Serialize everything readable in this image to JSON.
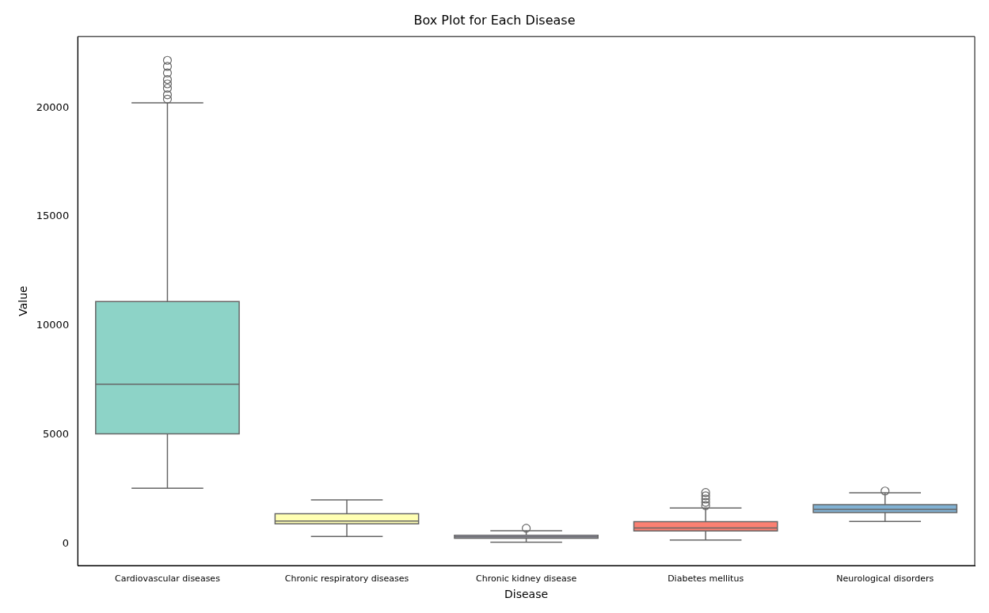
{
  "chart_data": {
    "type": "box",
    "title": "Box Plot for Each Disease",
    "xlabel": "Disease",
    "ylabel": "Value",
    "categories": [
      "Cardiovascular diseases",
      "Chronic respiratory diseases",
      "Chronic kidney disease",
      "Diabetes mellitus",
      "Neurological disorders"
    ],
    "colors": [
      "#8dd3c7",
      "#ffffb3",
      "#bebada",
      "#fb8072",
      "#80b1d3"
    ],
    "boxes": [
      {
        "low": 2550,
        "q1": 5040,
        "median": 7320,
        "q3": 11110,
        "high": 20230,
        "outliers": [
          20400,
          20600,
          20900,
          21100,
          21300,
          21600,
          21900,
          22180
        ]
      },
      {
        "low": 330,
        "q1": 910,
        "median": 1040,
        "q3": 1380,
        "high": 2010
      },
      {
        "low": 70,
        "q1": 250,
        "median": 320,
        "q3": 385,
        "high": 600,
        "outliers": [
          710
        ]
      },
      {
        "low": 170,
        "q1": 590,
        "median": 720,
        "q3": 1010,
        "high": 1640,
        "outliers": [
          1750,
          1900,
          2050,
          2200,
          2350
        ]
      },
      {
        "low": 1020,
        "q1": 1430,
        "median": 1580,
        "q3": 1790,
        "high": 2340,
        "outliers": [
          2420
        ]
      }
    ],
    "ylim": [
      -1000,
      23270
    ],
    "yticks": [
      0,
      5000,
      10000,
      15000,
      20000
    ],
    "grid": false,
    "legend": false
  }
}
